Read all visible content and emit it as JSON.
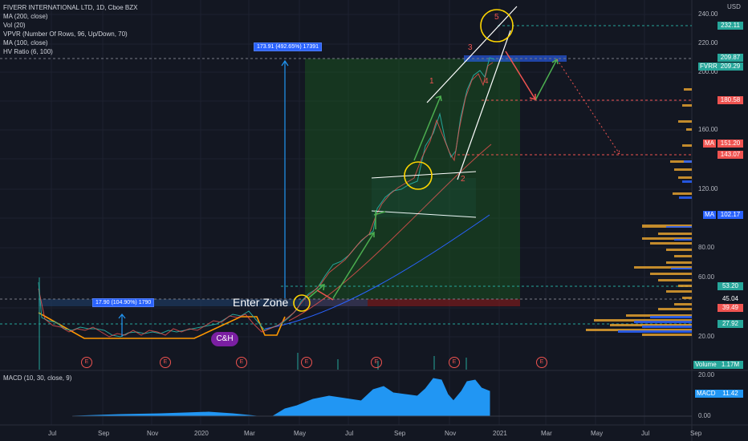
{
  "legend": {
    "title": "FIVERR INTERNATIONAL LTD, 1D, Cboe BZX",
    "lines": [
      "MA (200, close)",
      "Vol (20)",
      "VPVR (Number Of Rows, 96, Up/Down, 70)",
      "MA (100, close)",
      "HV Ratio (6, 100)"
    ]
  },
  "macd_legend": "MACD (10, 30, close, 9)",
  "currency": "USD",
  "price_axis": {
    "ticks": [
      "240.00",
      "220.00",
      "200.00",
      "180.00",
      "160.00",
      "140.00",
      "120.00",
      "100.00",
      "80.00",
      "60.00",
      "40.00",
      "20.00"
    ]
  },
  "price_tags": [
    {
      "label": "",
      "value": "232.11",
      "color": "#26a69a"
    },
    {
      "label": "",
      "value": "209.87",
      "color": "#26a69a"
    },
    {
      "label": "FVRR",
      "value": "209.29",
      "color": "#26a69a"
    },
    {
      "label": "",
      "value": "180.58",
      "color": "#ef5350"
    },
    {
      "label": "MA",
      "value": "151.20",
      "color": "#ef5350"
    },
    {
      "label": "",
      "value": "143.07",
      "color": "#ef5350"
    },
    {
      "label": "MA",
      "value": "102.17",
      "color": "#2962ff"
    },
    {
      "label": "",
      "value": "53.20",
      "color": "#26a69a"
    },
    {
      "label": "",
      "value": "45.04",
      "color": "#131722"
    },
    {
      "label": "",
      "value": "39.49",
      "color": "#ef5350"
    },
    {
      "label": "",
      "value": "27.92",
      "color": "#26a69a"
    },
    {
      "label": "Volume",
      "value": "1.17M",
      "color": "#26a69a"
    }
  ],
  "macd_axis": {
    "ticks": [
      "20.00",
      "0.00"
    ]
  },
  "macd_tag": {
    "label": "MACD",
    "value": "11.42"
  },
  "time_axis": [
    "Jul",
    "Sep",
    "Nov",
    "2020",
    "Mar",
    "May",
    "Jul",
    "Sep",
    "Nov",
    "2021",
    "Mar",
    "May",
    "Jul",
    "Sep"
  ],
  "notes": {
    "big_move": "173.91 (492.65%) 17391",
    "small_move": "17.90 (104.90%) 1790"
  },
  "enter_zone": "Enter Zone",
  "pattern_badge": "C&H",
  "waves": [
    "1",
    "2",
    "3",
    "4",
    "5"
  ],
  "earnings_marker": "E"
}
